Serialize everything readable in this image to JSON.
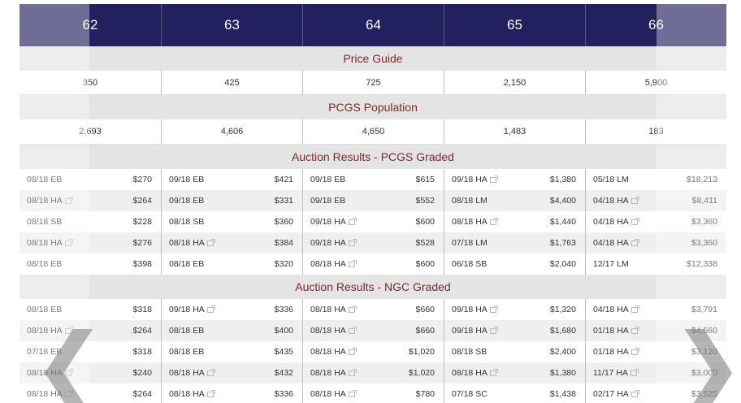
{
  "grades": [
    "62",
    "63",
    "64",
    "65",
    "66"
  ],
  "sections": {
    "price_guide": "Price Guide",
    "pcgs_population": "PCGS Population",
    "auction_pcgs": "Auction Results - PCGS Graded",
    "auction_ngc": "Auction Results - NGC Graded"
  },
  "price_guide": [
    "350",
    "425",
    "725",
    "2,150",
    "5,900"
  ],
  "pcgs_population": [
    "2,693",
    "4,606",
    "4,650",
    "1,483",
    "183"
  ],
  "pcgs_auctions": [
    [
      {
        "d": "08/18 EB",
        "p": "$270",
        "x": false
      },
      {
        "d": "09/18 EB",
        "p": "$421",
        "x": false
      },
      {
        "d": "09/18 EB",
        "p": "$615",
        "x": false
      },
      {
        "d": "09/18 HA",
        "p": "$1,380",
        "x": true
      },
      {
        "d": "05/18 LM",
        "p": "$18,213",
        "x": false
      }
    ],
    [
      {
        "d": "08/18 HA",
        "p": "$264",
        "x": true
      },
      {
        "d": "09/18 EB",
        "p": "$331",
        "x": false
      },
      {
        "d": "09/18 EB",
        "p": "$552",
        "x": false
      },
      {
        "d": "08/18 LM",
        "p": "$4,400",
        "x": false
      },
      {
        "d": "04/18 HA",
        "p": "$8,411",
        "x": true
      }
    ],
    [
      {
        "d": "08/18 SB",
        "p": "$228",
        "x": false
      },
      {
        "d": "08/18 SB",
        "p": "$360",
        "x": false
      },
      {
        "d": "09/18 HA",
        "p": "$600",
        "x": true
      },
      {
        "d": "08/18 HA",
        "p": "$1,440",
        "x": true
      },
      {
        "d": "04/18 HA",
        "p": "$3,360",
        "x": true
      }
    ],
    [
      {
        "d": "08/18 HA",
        "p": "$276",
        "x": true
      },
      {
        "d": "08/18 HA",
        "p": "$384",
        "x": true
      },
      {
        "d": "09/18 HA",
        "p": "$528",
        "x": true
      },
      {
        "d": "07/18 LM",
        "p": "$1,763",
        "x": false
      },
      {
        "d": "04/18 HA",
        "p": "$3,360",
        "x": true
      }
    ],
    [
      {
        "d": "08/18 EB",
        "p": "$398",
        "x": false
      },
      {
        "d": "08/18 EB",
        "p": "$320",
        "x": false
      },
      {
        "d": "08/18 HA",
        "p": "$600",
        "x": true
      },
      {
        "d": "06/18 SB",
        "p": "$2,040",
        "x": false
      },
      {
        "d": "12/17 LM",
        "p": "$12,338",
        "x": false
      }
    ]
  ],
  "ngc_auctions": [
    [
      {
        "d": "08/18 EB",
        "p": "$318",
        "x": false
      },
      {
        "d": "09/18 HA",
        "p": "$336",
        "x": true
      },
      {
        "d": "08/18 HA",
        "p": "$660",
        "x": true
      },
      {
        "d": "09/18 HA",
        "p": "$1,320",
        "x": true
      },
      {
        "d": "04/18 HA",
        "p": "$3,791",
        "x": true
      }
    ],
    [
      {
        "d": "08/18 HA",
        "p": "$264",
        "x": true
      },
      {
        "d": "08/18 EB",
        "p": "$400",
        "x": false
      },
      {
        "d": "08/18 HA",
        "p": "$660",
        "x": true
      },
      {
        "d": "09/18 HA",
        "p": "$1,680",
        "x": true
      },
      {
        "d": "01/18 HA",
        "p": "$4,560",
        "x": true
      }
    ],
    [
      {
        "d": "07/18 EB",
        "p": "$318",
        "x": false
      },
      {
        "d": "08/18 EB",
        "p": "$435",
        "x": false
      },
      {
        "d": "08/18 HA",
        "p": "$1,020",
        "x": true
      },
      {
        "d": "08/18 SB",
        "p": "$2,400",
        "x": false
      },
      {
        "d": "01/18 HA",
        "p": "$3,120",
        "x": true
      }
    ],
    [
      {
        "d": "08/18 HA",
        "p": "$240",
        "x": true
      },
      {
        "d": "08/18 HA",
        "p": "$432",
        "x": true
      },
      {
        "d": "08/18 HA",
        "p": "$1,020",
        "x": true
      },
      {
        "d": "08/18 HA",
        "p": "$1,380",
        "x": true
      },
      {
        "d": "11/17 HA",
        "p": "$3,000",
        "x": true
      }
    ],
    [
      {
        "d": "08/18 HA",
        "p": "$264",
        "x": true
      },
      {
        "d": "08/18 HA",
        "p": "$336",
        "x": true
      },
      {
        "d": "08/18 HA",
        "p": "$780",
        "x": true
      },
      {
        "d": "07/18 SC",
        "p": "$1,438",
        "x": false
      },
      {
        "d": "02/17 HA",
        "p": "$3,525",
        "x": true
      }
    ]
  ],
  "nav": {
    "prev_glyph": "❮",
    "next_glyph": "❯"
  },
  "icons": {
    "external_link": "external-link-icon"
  }
}
